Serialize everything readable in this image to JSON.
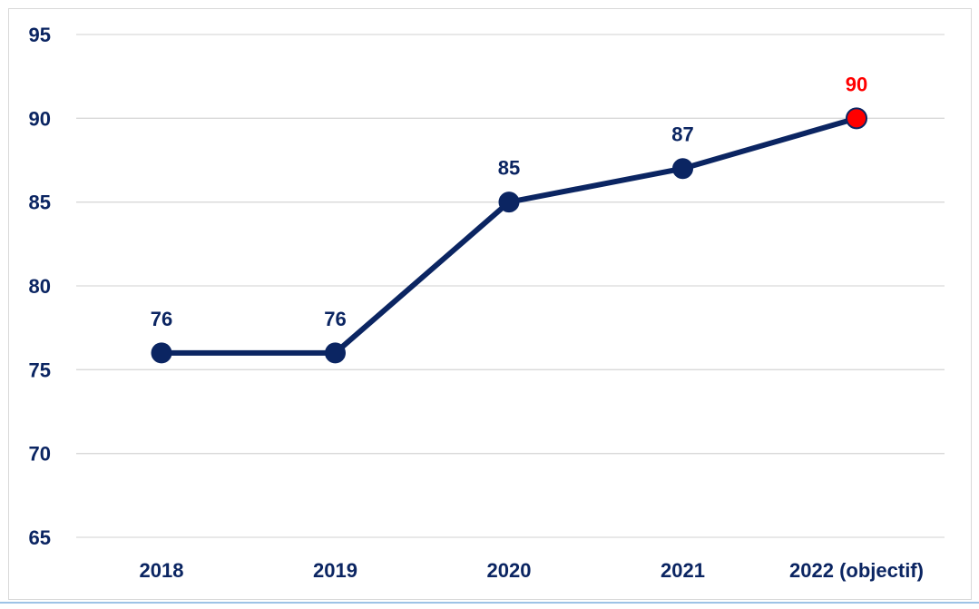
{
  "chart_data": {
    "type": "line",
    "categories": [
      "2018",
      "2019",
      "2020",
      "2021",
      "2022 (objectif)"
    ],
    "values": [
      76,
      76,
      85,
      87,
      90
    ],
    "data_labels": [
      "76",
      "76",
      "85",
      "87",
      "90"
    ],
    "y_ticks": [
      "95",
      "90",
      "85",
      "80",
      "75",
      "70",
      "65"
    ],
    "ylim": [
      65,
      95
    ],
    "title": "",
    "xlabel": "",
    "ylabel": "",
    "grid": "horizontal",
    "legend": "none",
    "colors": {
      "line": "#0b2562",
      "marker": "#0b2562",
      "highlight_marker": "#ff0000",
      "highlight_label": "#ff0000",
      "label": "#0b2562",
      "axis_text": "#0b2562",
      "grid": "#d9d9d9"
    },
    "highlight_index": 4
  }
}
